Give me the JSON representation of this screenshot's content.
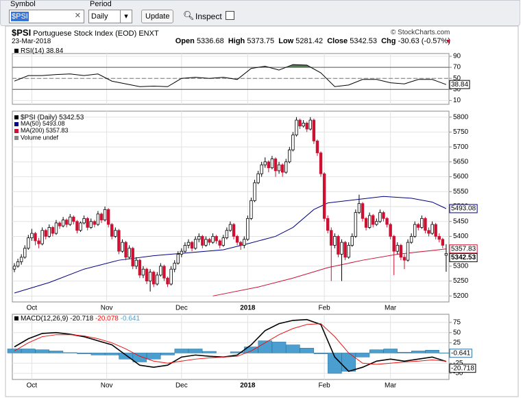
{
  "toolbar": {
    "symbol_label": "Symbol",
    "symbol": "$PSI",
    "period_label": "Period",
    "period": "Daily",
    "update": "Update",
    "inspect": "Inspect"
  },
  "header": {
    "symbol": "$PSI",
    "name": "Portuguese Stock Index (EOD)",
    "exchange": "ENXT",
    "credit": "© StockCharts.com",
    "date": "23-Mar-2018",
    "open_label": "Open",
    "high_label": "High",
    "low_label": "Low",
    "close_label": "Close",
    "chg_label": "Chg",
    "chg": "-30.63 (-0.57%)"
  },
  "chart_data": [
    {
      "type": "candlestick",
      "legend": "$PSI (Daily)",
      "volume_legend": "Volume undef",
      "up_color": "#000000",
      "down_color": "#cc1133",
      "grid": true,
      "ylim": [
        5180,
        5820
      ],
      "yticks": [
        5200,
        5250,
        5300,
        5350,
        5400,
        5450,
        5500,
        5550,
        5600,
        5650,
        5700,
        5750,
        5800
      ],
      "xticks": [
        {
          "value": 5,
          "label": "Oct"
        },
        {
          "value": 26.5,
          "label": "Nov"
        },
        {
          "value": 48,
          "label": "Dec"
        },
        {
          "value": 67,
          "label": "2018"
        },
        {
          "value": 89,
          "label": "Feb"
        },
        {
          "value": 108,
          "label": "Mar"
        }
      ],
      "candles": [
        [
          5290,
          5310,
          5280,
          5300
        ],
        [
          5300,
          5325,
          5295,
          5315
        ],
        [
          5315,
          5340,
          5305,
          5330
        ],
        [
          5330,
          5370,
          5325,
          5360
        ],
        [
          5360,
          5405,
          5355,
          5395
        ],
        [
          5395,
          5425,
          5385,
          5410
        ],
        [
          5410,
          5415,
          5370,
          5385
        ],
        [
          5385,
          5395,
          5360,
          5375
        ],
        [
          5375,
          5430,
          5370,
          5420
        ],
        [
          5420,
          5425,
          5390,
          5400
        ],
        [
          5400,
          5440,
          5395,
          5430
        ],
        [
          5430,
          5435,
          5400,
          5410
        ],
        [
          5410,
          5455,
          5405,
          5445
        ],
        [
          5445,
          5450,
          5425,
          5435
        ],
        [
          5435,
          5465,
          5430,
          5455
        ],
        [
          5455,
          5460,
          5430,
          5440
        ],
        [
          5440,
          5475,
          5435,
          5465
        ],
        [
          5465,
          5470,
          5440,
          5450
        ],
        [
          5450,
          5455,
          5410,
          5420
        ],
        [
          5420,
          5450,
          5415,
          5445
        ],
        [
          5445,
          5470,
          5440,
          5460
        ],
        [
          5460,
          5465,
          5420,
          5430
        ],
        [
          5430,
          5460,
          5425,
          5450
        ],
        [
          5450,
          5455,
          5430,
          5440
        ],
        [
          5440,
          5485,
          5435,
          5475
        ],
        [
          5475,
          5480,
          5445,
          5455
        ],
        [
          5455,
          5500,
          5450,
          5490
        ],
        [
          5490,
          5495,
          5430,
          5440
        ],
        [
          5440,
          5445,
          5390,
          5400
        ],
        [
          5400,
          5430,
          5395,
          5420
        ],
        [
          5420,
          5425,
          5340,
          5350
        ],
        [
          5350,
          5390,
          5345,
          5380
        ],
        [
          5380,
          5385,
          5320,
          5330
        ],
        [
          5330,
          5370,
          5325,
          5360
        ],
        [
          5360,
          5365,
          5290,
          5300
        ],
        [
          5300,
          5330,
          5290,
          5320
        ],
        [
          5320,
          5325,
          5260,
          5270
        ],
        [
          5270,
          5300,
          5260,
          5290
        ],
        [
          5290,
          5295,
          5240,
          5250
        ],
        [
          5250,
          5290,
          5215,
          5280
        ],
        [
          5280,
          5285,
          5230,
          5240
        ],
        [
          5240,
          5280,
          5235,
          5270
        ],
        [
          5270,
          5310,
          5265,
          5300
        ],
        [
          5300,
          5305,
          5250,
          5260
        ],
        [
          5260,
          5265,
          5230,
          5240
        ],
        [
          5240,
          5300,
          5235,
          5290
        ],
        [
          5290,
          5320,
          5280,
          5310
        ],
        [
          5310,
          5350,
          5305,
          5340
        ],
        [
          5340,
          5360,
          5330,
          5350
        ],
        [
          5350,
          5380,
          5345,
          5370
        ],
        [
          5370,
          5390,
          5360,
          5380
        ],
        [
          5380,
          5385,
          5350,
          5360
        ],
        [
          5360,
          5400,
          5355,
          5390
        ],
        [
          5390,
          5410,
          5380,
          5400
        ],
        [
          5400,
          5405,
          5360,
          5370
        ],
        [
          5370,
          5400,
          5365,
          5390
        ],
        [
          5390,
          5395,
          5370,
          5380
        ],
        [
          5380,
          5410,
          5375,
          5400
        ],
        [
          5400,
          5405,
          5375,
          5385
        ],
        [
          5385,
          5390,
          5360,
          5370
        ],
        [
          5370,
          5405,
          5365,
          5395
        ],
        [
          5395,
          5430,
          5390,
          5420
        ],
        [
          5420,
          5450,
          5415,
          5440
        ],
        [
          5440,
          5445,
          5390,
          5400
        ],
        [
          5400,
          5405,
          5370,
          5380
        ],
        [
          5380,
          5385,
          5355,
          5370
        ],
        [
          5370,
          5400,
          5360,
          5390
        ],
        [
          5390,
          5470,
          5385,
          5460
        ],
        [
          5460,
          5530,
          5455,
          5520
        ],
        [
          5520,
          5590,
          5515,
          5580
        ],
        [
          5580,
          5620,
          5575,
          5610
        ],
        [
          5610,
          5650,
          5600,
          5640
        ],
        [
          5640,
          5665,
          5630,
          5650
        ],
        [
          5650,
          5655,
          5615,
          5630
        ],
        [
          5630,
          5670,
          5625,
          5660
        ],
        [
          5660,
          5665,
          5600,
          5620
        ],
        [
          5620,
          5650,
          5610,
          5640
        ],
        [
          5640,
          5645,
          5600,
          5615
        ],
        [
          5615,
          5660,
          5610,
          5650
        ],
        [
          5650,
          5700,
          5645,
          5690
        ],
        [
          5690,
          5750,
          5685,
          5740
        ],
        [
          5740,
          5800,
          5735,
          5790
        ],
        [
          5790,
          5795,
          5760,
          5770
        ],
        [
          5770,
          5790,
          5765,
          5780
        ],
        [
          5780,
          5785,
          5750,
          5760
        ],
        [
          5760,
          5800,
          5755,
          5790
        ],
        [
          5790,
          5795,
          5710,
          5720
        ],
        [
          5720,
          5725,
          5670,
          5680
        ],
        [
          5680,
          5685,
          5600,
          5610
        ],
        [
          5610,
          5615,
          5450,
          5460
        ],
        [
          5460,
          5470,
          5410,
          5420
        ],
        [
          5420,
          5430,
          5250,
          5370
        ],
        [
          5370,
          5410,
          5360,
          5400
        ],
        [
          5400,
          5405,
          5330,
          5340
        ],
        [
          5340,
          5390,
          5250,
          5380
        ],
        [
          5380,
          5385,
          5320,
          5330
        ],
        [
          5330,
          5380,
          5325,
          5370
        ],
        [
          5370,
          5410,
          5365,
          5400
        ],
        [
          5400,
          5490,
          5395,
          5480
        ],
        [
          5480,
          5540,
          5475,
          5510
        ],
        [
          5510,
          5515,
          5450,
          5460
        ],
        [
          5460,
          5465,
          5420,
          5430
        ],
        [
          5430,
          5480,
          5425,
          5470
        ],
        [
          5470,
          5475,
          5430,
          5440
        ],
        [
          5440,
          5460,
          5435,
          5450
        ],
        [
          5450,
          5490,
          5445,
          5480
        ],
        [
          5480,
          5485,
          5450,
          5460
        ],
        [
          5460,
          5465,
          5430,
          5440
        ],
        [
          5440,
          5445,
          5390,
          5400
        ],
        [
          5400,
          5405,
          5270,
          5350
        ],
        [
          5350,
          5380,
          5340,
          5370
        ],
        [
          5370,
          5375,
          5320,
          5330
        ],
        [
          5330,
          5340,
          5290,
          5320
        ],
        [
          5320,
          5390,
          5315,
          5380
        ],
        [
          5380,
          5410,
          5375,
          5400
        ],
        [
          5400,
          5450,
          5395,
          5440
        ],
        [
          5440,
          5445,
          5420,
          5430
        ],
        [
          5430,
          5470,
          5425,
          5460
        ],
        [
          5460,
          5465,
          5410,
          5420
        ],
        [
          5420,
          5430,
          5400,
          5410
        ],
        [
          5410,
          5450,
          5405,
          5440
        ],
        [
          5440,
          5445,
          5390,
          5400
        ],
        [
          5400,
          5410,
          5380,
          5390
        ],
        [
          5390,
          5395,
          5360,
          5370
        ],
        [
          5336.68,
          5373.75,
          5281.42,
          5342.53
        ]
      ],
      "series": [
        {
          "name": "MA(50)",
          "color": "#000080",
          "x": [
            0,
            10,
            20,
            30,
            40,
            50,
            60,
            67,
            75,
            80,
            86,
            90,
            98,
            106,
            114,
            120,
            124
          ],
          "values": [
            5210,
            5245,
            5290,
            5320,
            5335,
            5345,
            5355,
            5375,
            5400,
            5430,
            5490,
            5512,
            5523,
            5534,
            5528,
            5515,
            5493.08
          ]
        },
        {
          "name": "MA(200)",
          "color": "#cc1133",
          "x": [
            57,
            70,
            80,
            90,
            100,
            110,
            118,
            124
          ],
          "values": [
            5200,
            5230,
            5260,
            5295,
            5320,
            5340,
            5350,
            5357.83
          ]
        }
      ]
    },
    {
      "type": "line",
      "ylim": [
        3,
        95
      ],
      "yticks": [
        90,
        70,
        50,
        30,
        10
      ],
      "overbought": 70,
      "oversold": 30,
      "fill_color": "#4f7f4f",
      "series": [
        {
          "name": "RSI(14)",
          "color": "#000000",
          "x": [
            0,
            4,
            8,
            12,
            16,
            20,
            24,
            28,
            32,
            36,
            40,
            44,
            48,
            52,
            56,
            60,
            64,
            68,
            72,
            76,
            80,
            84,
            88,
            92,
            96,
            100,
            104,
            108,
            112,
            116,
            120,
            124
          ],
          "values": [
            45,
            55,
            55,
            57,
            58,
            55,
            58,
            45,
            40,
            35,
            36,
            35,
            50,
            52,
            50,
            52,
            48,
            68,
            72,
            65,
            75,
            74,
            60,
            35,
            38,
            48,
            48,
            42,
            40,
            48,
            48,
            38.84
          ]
        }
      ]
    },
    {
      "type": "macd",
      "ylim": [
        -65,
        95
      ],
      "yticks": [
        75,
        50,
        25,
        0,
        -25,
        -50
      ],
      "xticks": [
        {
          "value": 5,
          "label": "Oct"
        },
        {
          "value": 26.5,
          "label": "Nov"
        },
        {
          "value": 48,
          "label": "Dec"
        },
        {
          "value": 67,
          "label": "2018"
        },
        {
          "value": 89,
          "label": "Feb"
        },
        {
          "value": 108,
          "label": "Mar"
        }
      ],
      "x": [
        0,
        4,
        8,
        12,
        16,
        20,
        24,
        28,
        32,
        36,
        40,
        44,
        48,
        52,
        56,
        60,
        64,
        68,
        72,
        76,
        80,
        84,
        88,
        92,
        96,
        100,
        104,
        108,
        112,
        116,
        120,
        124
      ],
      "series": [
        {
          "name": "MACD(12,26,9)",
          "color": "#000000",
          "values": [
            15,
            35,
            48,
            50,
            46,
            40,
            30,
            20,
            -5,
            -30,
            -35,
            -30,
            -10,
            -5,
            -8,
            -10,
            -5,
            20,
            55,
            72,
            80,
            82,
            70,
            -10,
            -45,
            -35,
            -20,
            -15,
            -20,
            -15,
            -10,
            -20.718
          ]
        },
        {
          "color": "#ee1111",
          "values": [
            5,
            25,
            40,
            45,
            45,
            42,
            35,
            25,
            10,
            -8,
            -20,
            -25,
            -20,
            -15,
            -12,
            -10,
            -8,
            5,
            25,
            45,
            60,
            70,
            72,
            40,
            0,
            -25,
            -28,
            -25,
            -22,
            -20,
            -17,
            -20.078
          ]
        },
        {
          "type": "bar",
          "color": "#4a9fd0",
          "values": [
            10,
            10,
            8,
            5,
            1,
            -2,
            -5,
            -5,
            -15,
            -22,
            -15,
            -5,
            10,
            10,
            4,
            0,
            3,
            15,
            30,
            27,
            20,
            12,
            -2,
            -50,
            -45,
            -10,
            8,
            10,
            2,
            5,
            7,
            -0.641
          ]
        }
      ]
    }
  ]
}
